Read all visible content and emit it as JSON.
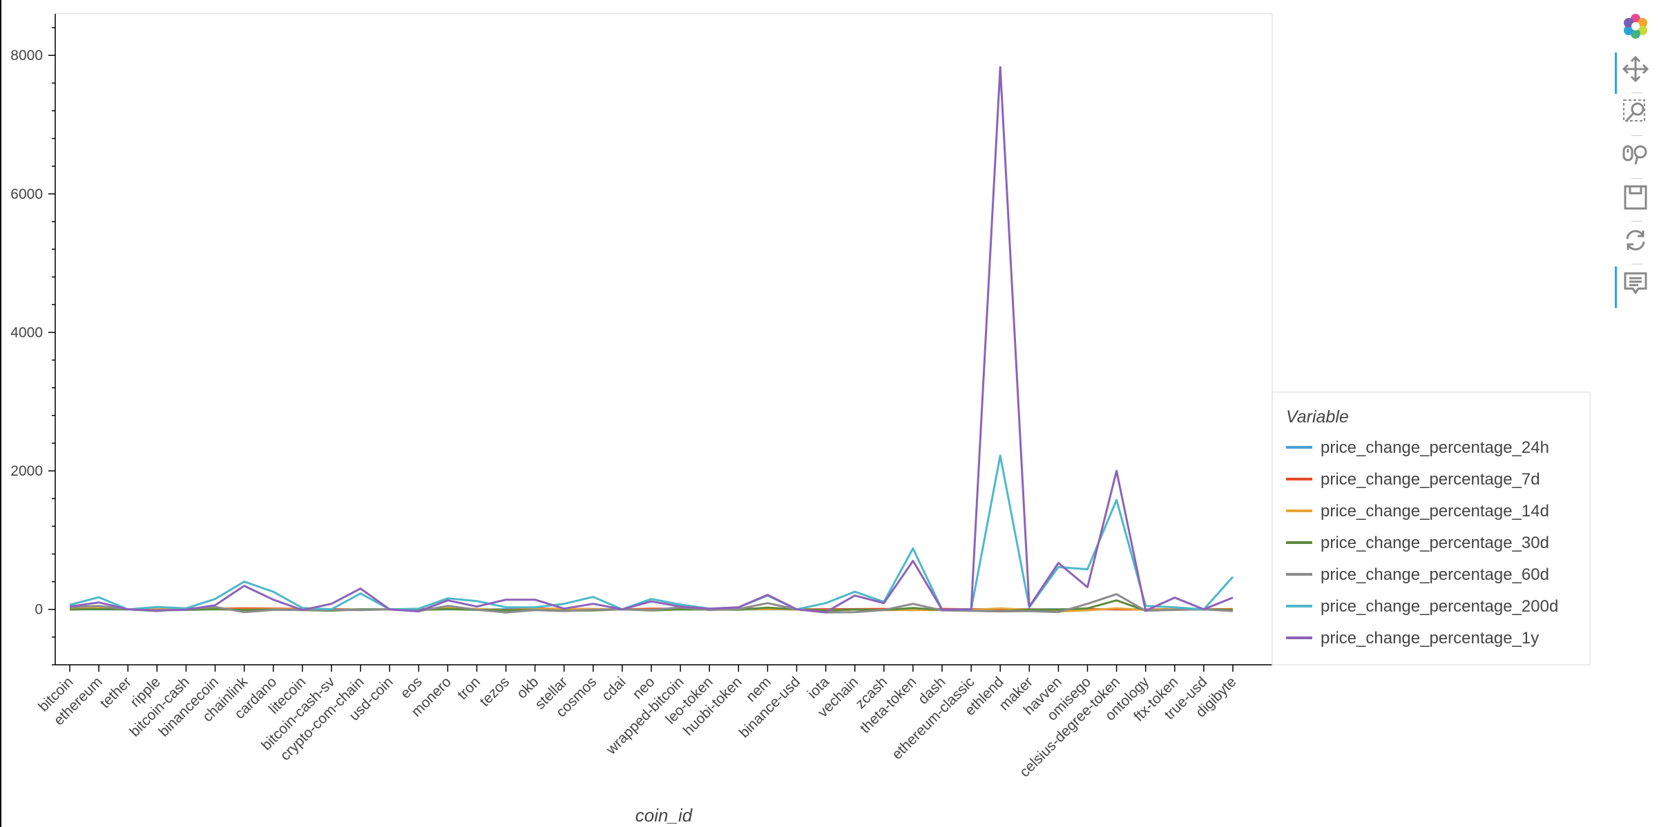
{
  "chart_data": {
    "type": "line",
    "xlabel": "coin_id",
    "ylabel": "",
    "ylim": [
      -800,
      8600
    ],
    "yticks": [
      0,
      2000,
      4000,
      6000,
      8000
    ],
    "grid": false,
    "legend": {
      "title": "Variable",
      "placement": "right"
    },
    "categories": [
      "bitcoin",
      "ethereum",
      "tether",
      "ripple",
      "bitcoin-cash",
      "binancecoin",
      "chainlink",
      "cardano",
      "litecoin",
      "bitcoin-cash-sv",
      "crypto-com-chain",
      "usd-coin",
      "eos",
      "monero",
      "tron",
      "tezos",
      "okb",
      "stellar",
      "cosmos",
      "cdai",
      "neo",
      "wrapped-bitcoin",
      "leo-token",
      "huobi-token",
      "nem",
      "binance-usd",
      "iota",
      "vechain",
      "zcash",
      "theta-token",
      "dash",
      "ethereum-classic",
      "ethlend",
      "maker",
      "havven",
      "omisego",
      "celsius-degree-token",
      "ontology",
      "ftx-token",
      "true-usd",
      "digibyte"
    ],
    "series": [
      {
        "name": "price_change_percentage_24h",
        "color": "#4c9fd6",
        "values": [
          1,
          0,
          0,
          0,
          1,
          1,
          2,
          1,
          1,
          -1,
          0,
          0,
          -1,
          0,
          0,
          1,
          2,
          0,
          0,
          0,
          0,
          0,
          0,
          0,
          0,
          0,
          -1,
          1,
          0,
          -2,
          1,
          1,
          -4,
          0,
          1,
          2,
          0,
          -1,
          0,
          0,
          1
        ]
      },
      {
        "name": "price_change_percentage_7d",
        "color": "#e64a2c",
        "values": [
          7,
          12,
          0,
          -2,
          14,
          8,
          14,
          11,
          6,
          2,
          -5,
          0,
          4,
          11,
          1,
          -10,
          12,
          5,
          5,
          0,
          9,
          8,
          4,
          12,
          9,
          0,
          1,
          3,
          7,
          -10,
          7,
          -1,
          4,
          0,
          -7,
          2,
          0,
          -3,
          5,
          0,
          4
        ]
      },
      {
        "name": "price_change_percentage_14d",
        "color": "#e6a53a",
        "values": [
          7,
          21,
          0,
          -1,
          4,
          7,
          -3,
          5,
          -5,
          -8,
          -4,
          0,
          -10,
          22,
          4,
          -13,
          2,
          5,
          4,
          0,
          -6,
          6,
          -1,
          6,
          2,
          0,
          -15,
          -3,
          -10,
          -11,
          -10,
          -11,
          15,
          -8,
          -30,
          -14,
          14,
          -7,
          3,
          0,
          -4
        ]
      },
      {
        "name": "price_change_percentage_30d",
        "color": "#5e8a3e",
        "values": [
          -3,
          5,
          0,
          -16,
          -8,
          2,
          -9,
          -4,
          -10,
          -18,
          0,
          0,
          -11,
          4,
          -8,
          -13,
          -9,
          -19,
          -16,
          0,
          -15,
          0,
          -3,
          -5,
          25,
          0,
          -17,
          -2,
          -11,
          20,
          -11,
          -20,
          -27,
          -6,
          -4,
          14,
          130,
          -18,
          -7,
          0,
          -8
        ]
      },
      {
        "name": "price_change_percentage_60d",
        "color": "#8c8c8c",
        "values": [
          30,
          50,
          0,
          -25,
          9,
          35,
          -40,
          -8,
          -8,
          -6,
          -10,
          0,
          -25,
          50,
          -5,
          -45,
          -10,
          -25,
          -5,
          0,
          -10,
          30,
          -10,
          5,
          90,
          0,
          -45,
          -40,
          -10,
          80,
          -15,
          -20,
          -30,
          -25,
          -40,
          80,
          220,
          -20,
          -5,
          0,
          -25
        ]
      },
      {
        "name": "price_change_percentage_200d",
        "color": "#4fb8c9",
        "values": [
          65,
          175,
          0,
          35,
          15,
          150,
          400,
          255,
          20,
          1,
          230,
          0,
          10,
          160,
          120,
          30,
          30,
          80,
          180,
          0,
          150,
          70,
          10,
          30,
          200,
          0,
          90,
          255,
          110,
          880,
          -5,
          0,
          2220,
          30,
          610,
          580,
          1580,
          50,
          30,
          0,
          470
        ]
      },
      {
        "name": "price_change_percentage_1y",
        "color": "#8c63b8",
        "values": [
          40,
          100,
          0,
          -15,
          -5,
          60,
          340,
          140,
          -10,
          80,
          300,
          0,
          -30,
          130,
          40,
          140,
          140,
          10,
          80,
          0,
          115,
          40,
          10,
          30,
          210,
          0,
          -40,
          200,
          90,
          700,
          -5,
          0,
          7830,
          40,
          670,
          320,
          2000,
          -20,
          170,
          0,
          170
        ]
      }
    ]
  },
  "toolbar": {
    "tools": [
      {
        "name": "bokeh-logo-icon"
      },
      {
        "name": "pan-icon"
      },
      {
        "name": "box-zoom-icon"
      },
      {
        "name": "wheel-zoom-icon"
      },
      {
        "name": "save-icon"
      },
      {
        "name": "reset-icon"
      },
      {
        "name": "hover-icon"
      }
    ]
  }
}
